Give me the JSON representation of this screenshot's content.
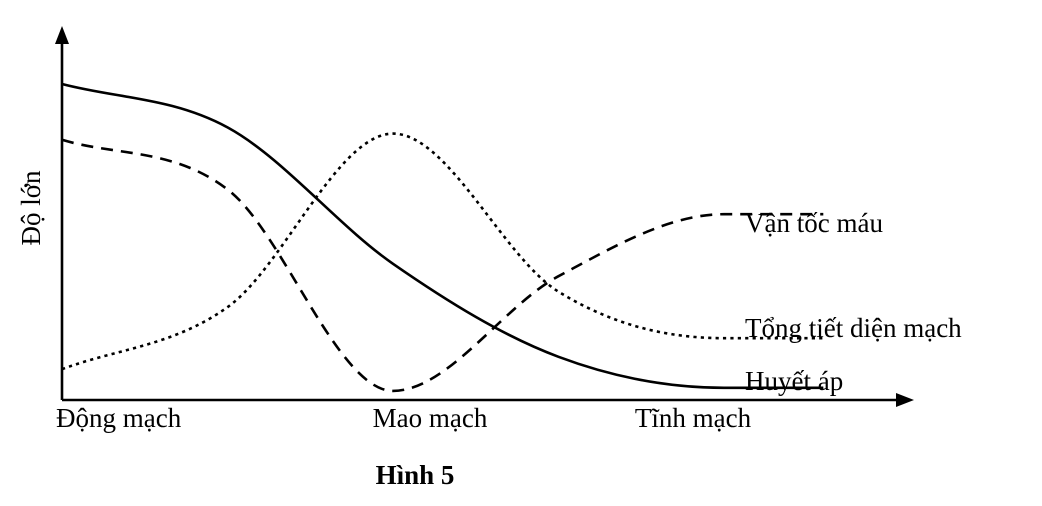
{
  "chart_data": {
    "type": "line",
    "title": "Hình 5",
    "xlabel": "",
    "ylabel": "Độ lớn",
    "categories": [
      "Động mạch",
      "Mao mạch",
      "Tĩnh mạch"
    ],
    "x": [
      0,
      0.5,
      1,
      1.5,
      2,
      2.3
    ],
    "ylim": [
      0,
      10
    ],
    "grid": false,
    "legend": "none",
    "series": [
      {
        "name": "Huyết áp",
        "style": "solid",
        "values": [
          10.0,
          8.6,
          4.2,
          1.2,
          0.2,
          0.2
        ]
      },
      {
        "name": "Vận tốc máu",
        "style": "dashed",
        "values": [
          8.2,
          6.6,
          0.1,
          3.8,
          5.8,
          5.8
        ]
      },
      {
        "name": "Tổng tiết diện mạch",
        "style": "dotted",
        "values": [
          0.8,
          2.8,
          8.4,
          3.3,
          1.8,
          1.8
        ]
      }
    ]
  }
}
